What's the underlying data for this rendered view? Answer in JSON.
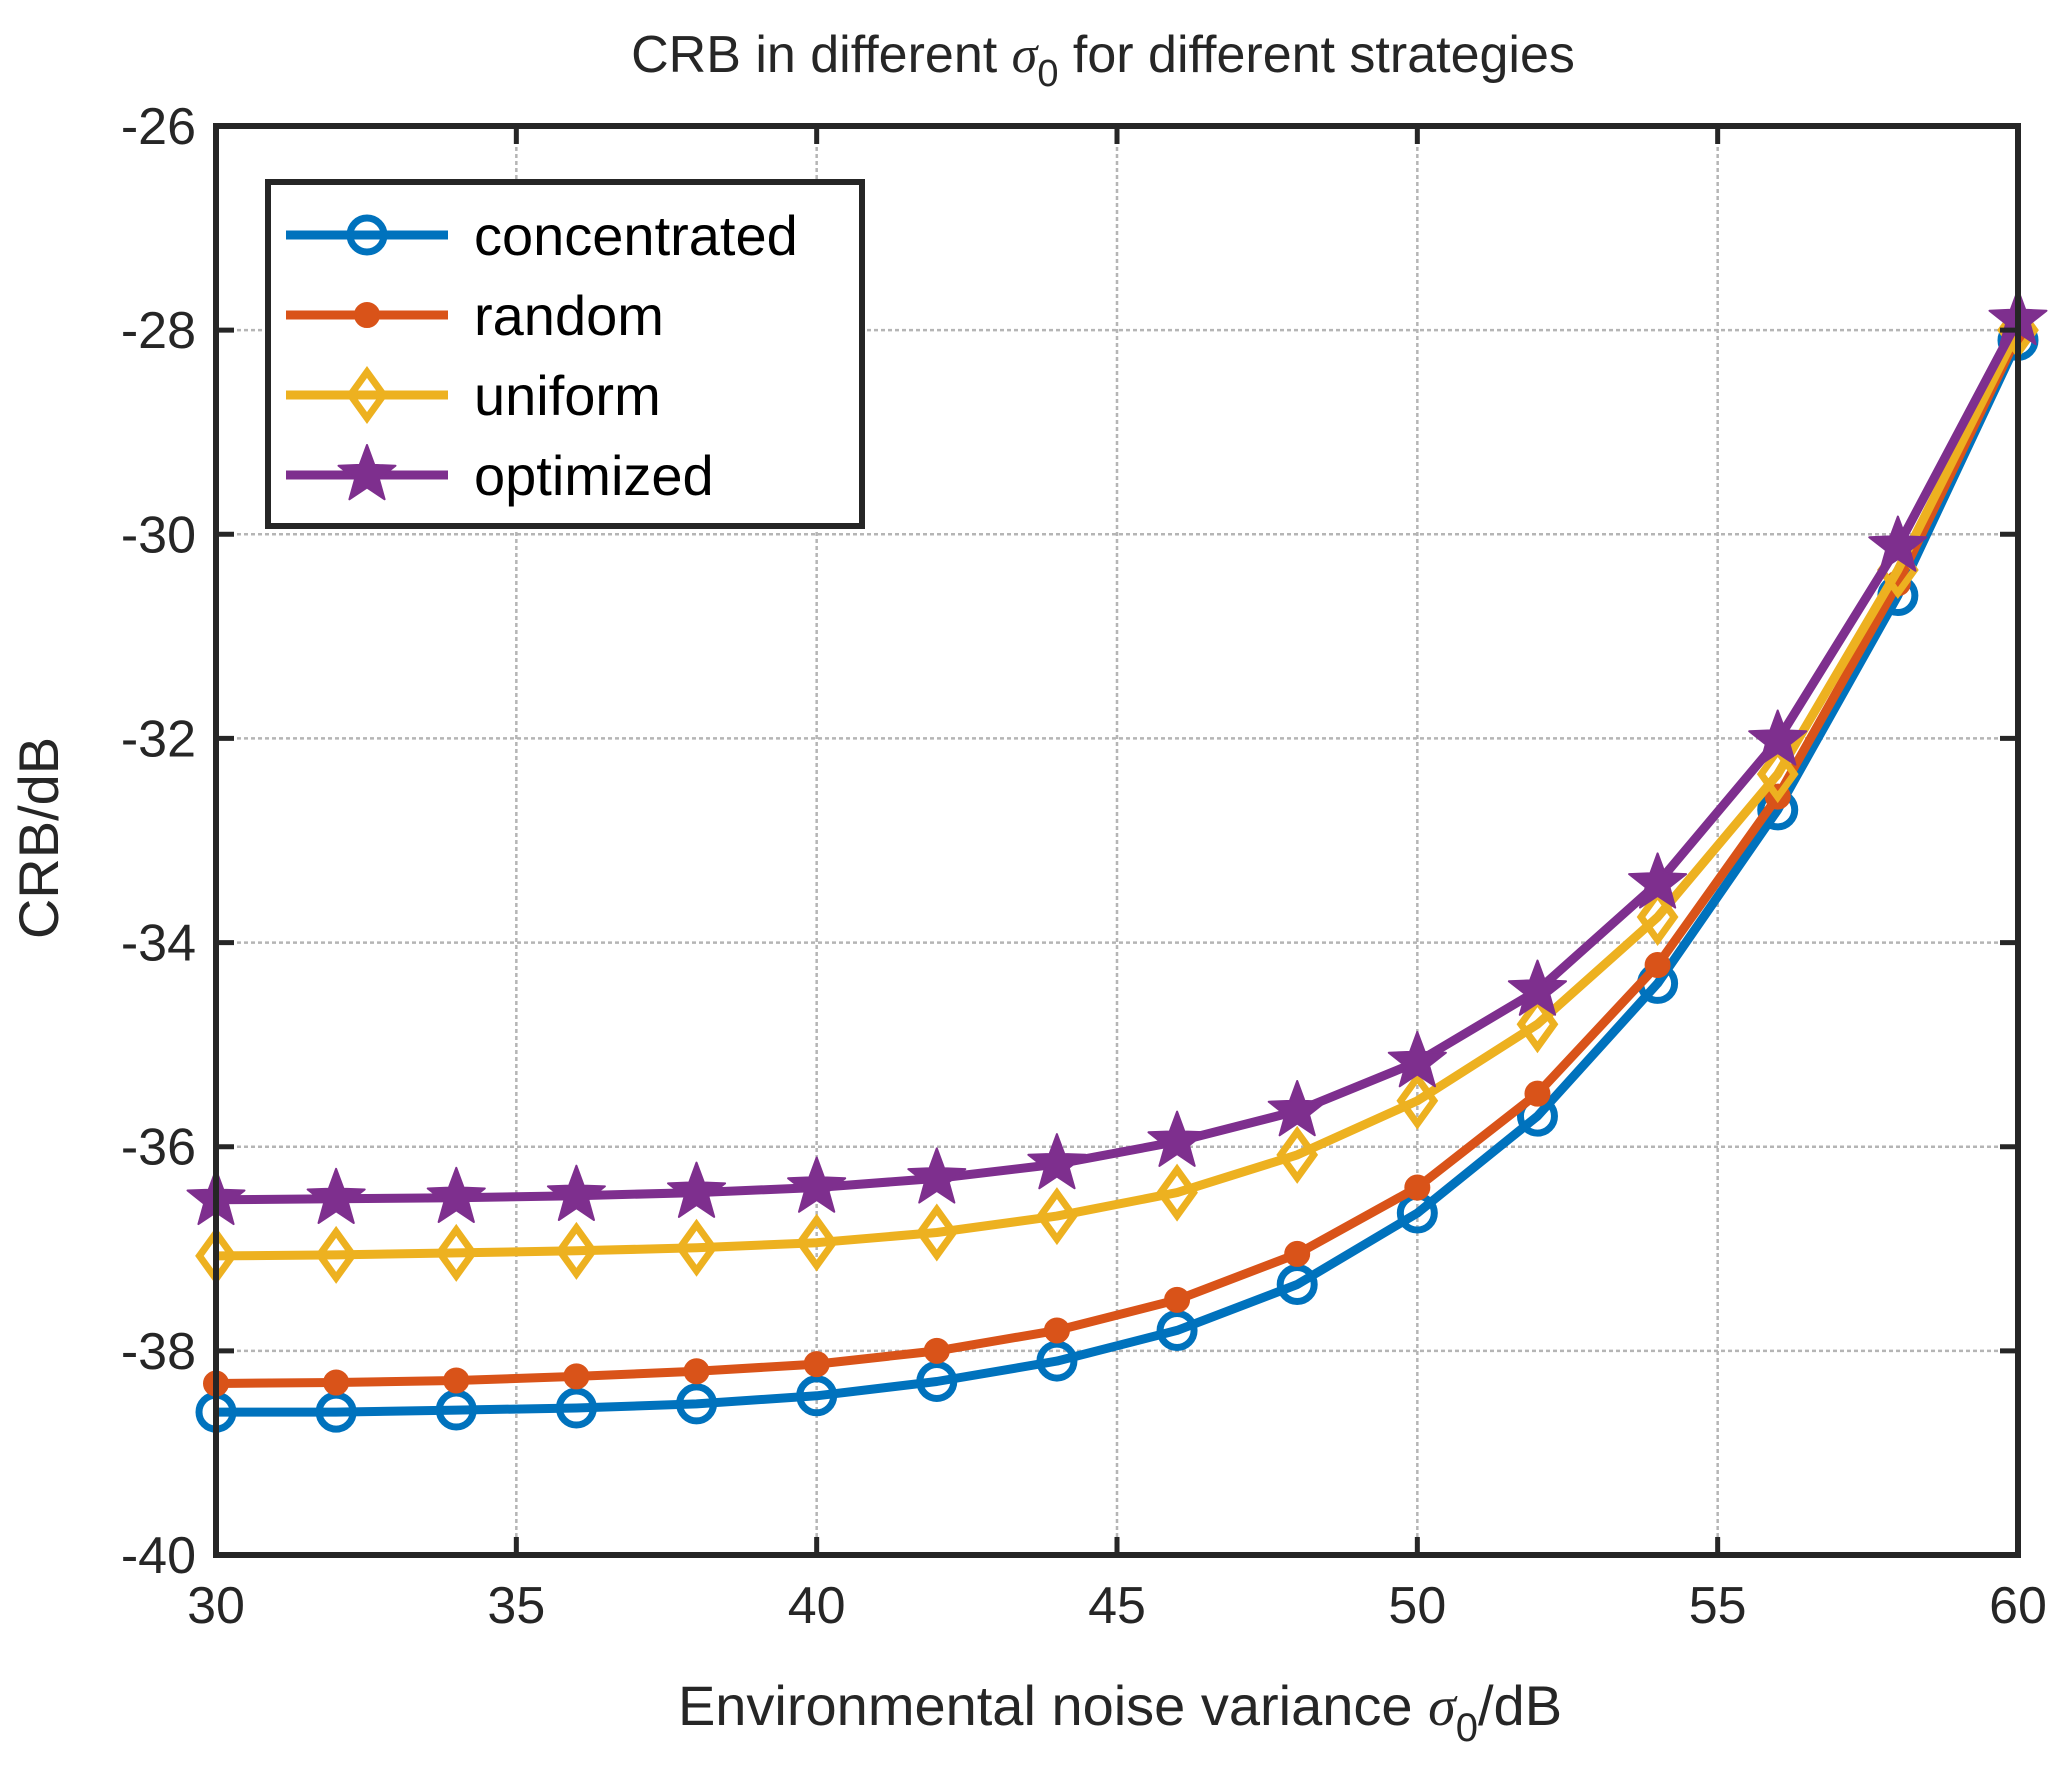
{
  "chart_data": {
    "type": "line",
    "title_main": "CRB in different",
    "title_symbol": "σ",
    "title_symbol_sub": "0",
    "title_tail": "for different strategies",
    "xlabel_main": "Environmental noise variance",
    "xlabel_symbol": "σ",
    "xlabel_symbol_sub": "0",
    "xlabel_tail": "/dB",
    "ylabel": "CRB/dB",
    "xlim": [
      30,
      60
    ],
    "ylim": [
      -40,
      -26
    ],
    "xticks": [
      30,
      35,
      40,
      45,
      50,
      55,
      60
    ],
    "yticks": [
      -40,
      -38,
      -36,
      -34,
      -32,
      -30,
      -28,
      -26
    ],
    "grid": true,
    "legend_position": "top-left",
    "x": [
      30,
      32,
      34,
      36,
      38,
      40,
      42,
      44,
      46,
      48,
      50,
      52,
      54,
      56,
      58,
      60
    ],
    "series": [
      {
        "name": "concentrated",
        "color": "#0072BD",
        "marker": "circle",
        "values": [
          -38.6,
          -38.6,
          -38.58,
          -38.56,
          -38.52,
          -38.44,
          -38.3,
          -38.1,
          -37.8,
          -37.35,
          -36.65,
          -35.7,
          -34.4,
          -32.7,
          -30.6,
          -28.1
        ]
      },
      {
        "name": "random",
        "color": "#D95319",
        "marker": "dot",
        "values": [
          -38.32,
          -38.31,
          -38.29,
          -38.25,
          -38.2,
          -38.13,
          -38.0,
          -37.8,
          -37.5,
          -37.05,
          -36.4,
          -35.48,
          -34.22,
          -32.57,
          -30.48,
          -28.05
        ]
      },
      {
        "name": "uniform",
        "color": "#EDB120",
        "marker": "diamond",
        "values": [
          -37.07,
          -37.06,
          -37.04,
          -37.02,
          -36.99,
          -36.94,
          -36.84,
          -36.68,
          -36.45,
          -36.08,
          -35.55,
          -34.8,
          -33.75,
          -32.35,
          -30.35,
          -28.0
        ]
      },
      {
        "name": "optimized",
        "color": "#7E2F8E",
        "marker": "star",
        "values": [
          -36.52,
          -36.51,
          -36.5,
          -36.48,
          -36.45,
          -36.4,
          -36.31,
          -36.17,
          -35.95,
          -35.65,
          -35.17,
          -34.47,
          -33.42,
          -32.02,
          -30.12,
          -27.9
        ]
      }
    ]
  }
}
